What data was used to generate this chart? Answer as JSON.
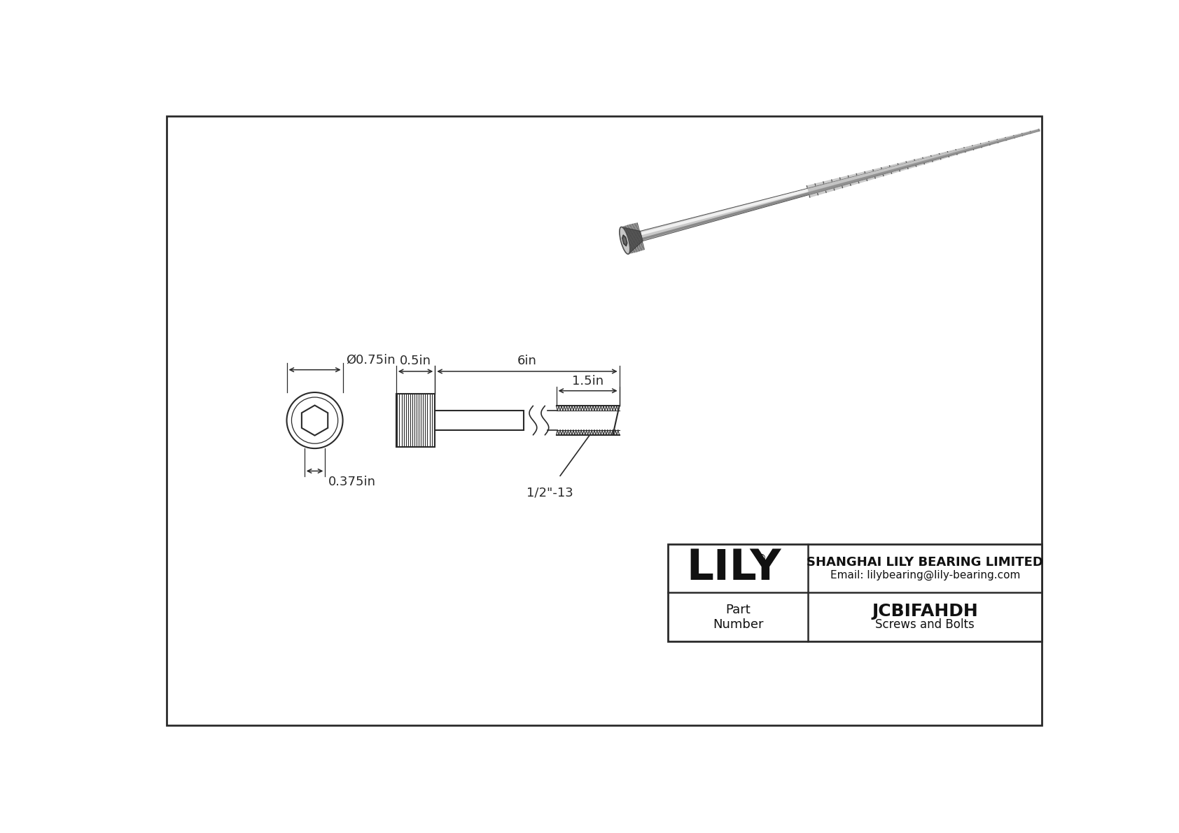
{
  "bg_color": "#ffffff",
  "line_color": "#2a2a2a",
  "title": "JCBIFAHDH",
  "subtitle": "Screws and Bolts",
  "company": "SHANGHAI LILY BEARING LIMITED",
  "email": "Email: lilybearing@lily-bearing.com",
  "part_label": "Part\nNumber",
  "logo": "LILY",
  "dim_diameter": "Ø0.75in",
  "dim_height": "0.375in",
  "dim_head_width": "0.5in",
  "dim_length": "6in",
  "dim_thread": "1.5in",
  "thread_label": "1/2\"-13",
  "gray_dark": "#707070",
  "gray_mid": "#999999",
  "gray_light": "#c8c8c8",
  "gray_lighter": "#e0e0e0",
  "gray_highlight": "#f0f0f0",
  "screw_edge": "#505050"
}
